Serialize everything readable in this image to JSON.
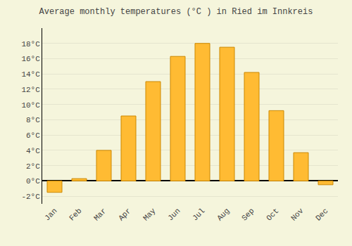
{
  "chart_data": {
    "type": "bar",
    "title": "Average monthly temperatures (°C ) in Ried im Innkreis",
    "categories": [
      "Jan",
      "Feb",
      "Mar",
      "Apr",
      "May",
      "Jun",
      "Jul",
      "Aug",
      "Sep",
      "Oct",
      "Nov",
      "Dec"
    ],
    "values": [
      -1.5,
      0.3,
      4.0,
      8.5,
      13.0,
      16.3,
      18.0,
      17.5,
      14.2,
      9.2,
      3.7,
      -0.5
    ],
    "color": "#FFBB33",
    "ylim": [
      -3,
      20
    ],
    "yticks": [
      {
        "value": -2,
        "label": "-2°C"
      },
      {
        "value": 0,
        "label": "0°C"
      },
      {
        "value": 2,
        "label": "2°C"
      },
      {
        "value": 4,
        "label": "4°C"
      },
      {
        "value": 6,
        "label": "6°C"
      },
      {
        "value": 8,
        "label": "8°C"
      },
      {
        "value": 10,
        "label": "10°C"
      },
      {
        "value": 12,
        "label": "12°C"
      },
      {
        "value": 14,
        "label": "14°C"
      },
      {
        "value": 16,
        "label": "16°C"
      },
      {
        "value": 18,
        "label": "18°C"
      }
    ],
    "grid": true
  }
}
